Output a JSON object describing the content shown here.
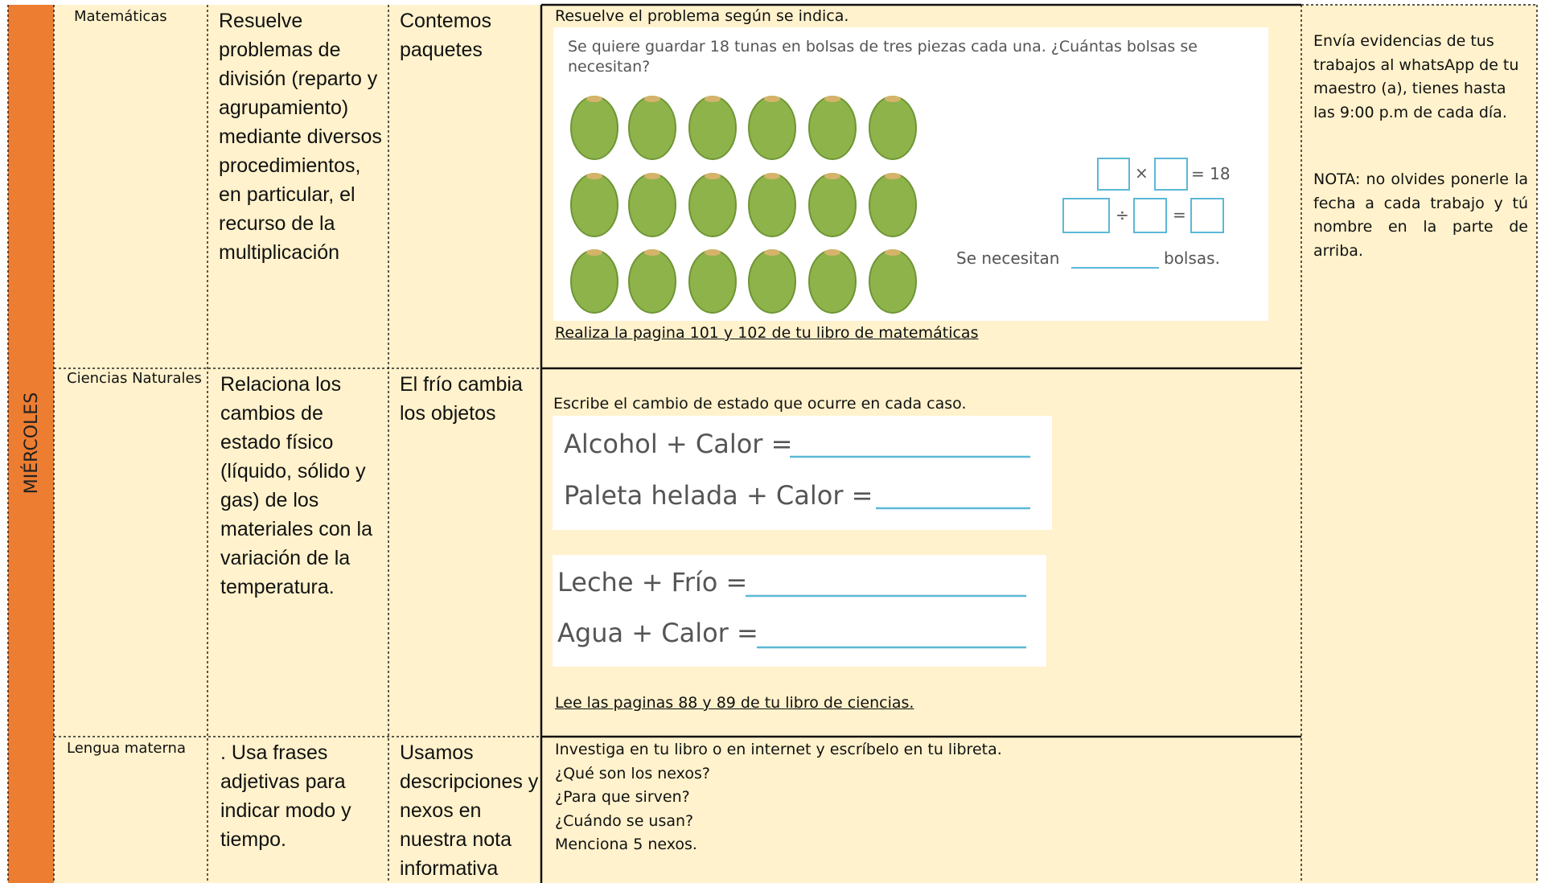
{
  "day": "MIÉRCOLES",
  "rows": [
    {
      "subject": "Matemáticas",
      "learning": "Resuelve problemas de división (reparto y agrupamiento) mediante diversos procedimientos, en particular, el recurso de la multiplicación",
      "topic": "Contemos paquetes",
      "activity": {
        "instruction": "Resuelve el problema según se indica.",
        "exercise": {
          "question": "Se quiere guardar 18 tunas en bolsas de tres piezas cada una. ¿Cuántas bolsas se necesitan?",
          "times": "×",
          "product": "= 18",
          "divide": "÷",
          "equals": "=",
          "answer_prefix": "Se necesitan",
          "answer_suffix": "bolsas."
        },
        "link": "Realiza la pagina 101 y 102  de tu libro de matemáticas"
      }
    },
    {
      "subject": "Ciencias Naturales",
      "learning": "Relaciona los cambios de estado físico (líquido, sólido y gas) de los materiales con la variación de la temperatura.",
      "topic": "El frío cambia los objetos",
      "activity": {
        "instruction": "Escribe el cambio de estado que ocurre en cada caso.",
        "items": [
          "Alcohol + Calor =",
          "Paleta helada + Calor =",
          "Leche + Frío =",
          "Agua + Calor ="
        ],
        "link": "Lee las paginas 88 y 89 de tu libro de ciencias."
      }
    },
    {
      "subject": "Lengua materna",
      "learning": ". Usa frases adjetivas para indicar modo y tiempo.",
      "topic": "Usamos descripciones y nexos en nuestra nota informativa",
      "activity": {
        "lines": [
          "Investiga  en tu libro o en internet y escríbelo en tu libreta.",
          "¿Qué son los nexos?",
          "¿Para que sirven?",
          "¿Cuándo se usan?",
          "Menciona 5 nexos."
        ]
      }
    }
  ],
  "notes": [
    "Envía evidencias de tus trabajos al whatsApp de tu maestro (a), tienes hasta las 9:00 p.m de cada día.",
    "NOTA: no olvides ponerle la fecha a cada trabajo y tú nombre en la parte de arriba."
  ]
}
